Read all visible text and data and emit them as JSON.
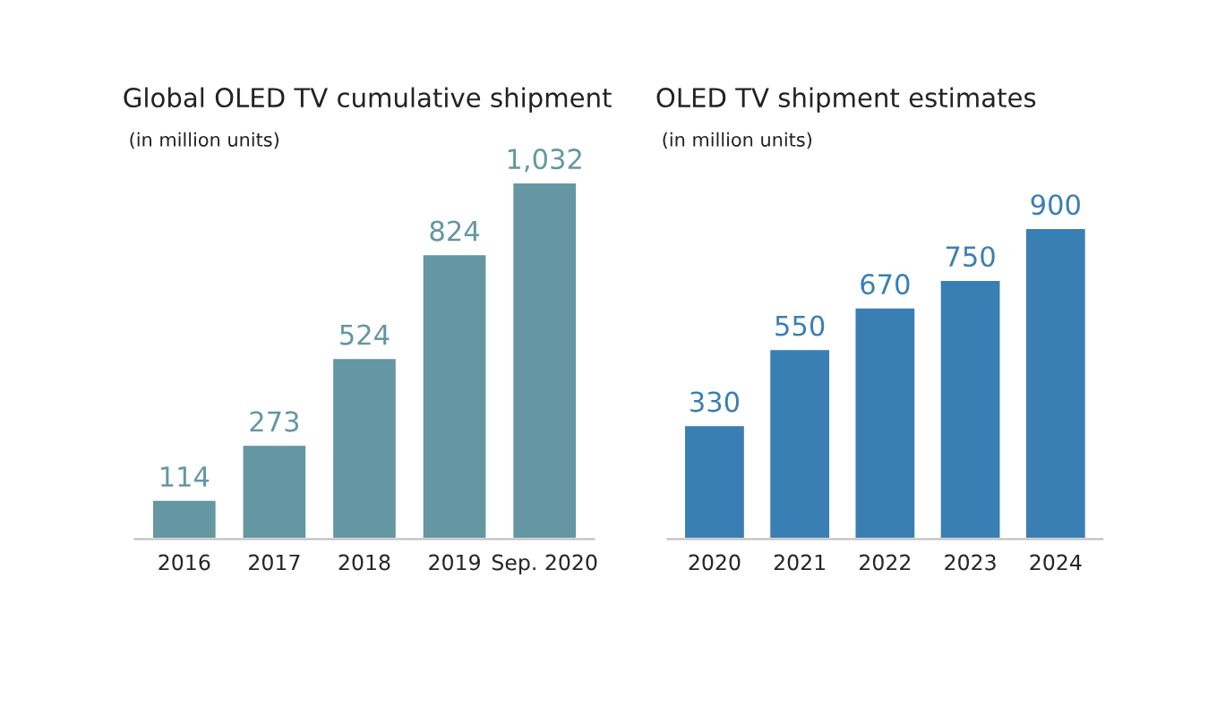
{
  "chart_data": [
    {
      "type": "bar",
      "title": "Global OLED TV cumulative shipment",
      "subtitle": "(in million units)",
      "categories": [
        "2016",
        "2017",
        "2018",
        "2019",
        "Sep. 2020"
      ],
      "values": [
        114,
        273,
        524,
        824,
        1032
      ],
      "value_labels": [
        "114",
        "273",
        "524",
        "824",
        "1,032"
      ],
      "color": "#6497a1",
      "grid": false,
      "legend": false
    },
    {
      "type": "bar",
      "title": "OLED TV shipment estimates",
      "subtitle": "(in million units)",
      "categories": [
        "2020",
        "2021",
        "2022",
        "2023",
        "2024"
      ],
      "values": [
        330,
        550,
        670,
        750,
        900
      ],
      "value_labels": [
        "330",
        "550",
        "670",
        "750",
        "900"
      ],
      "color": "#3a7fb4",
      "grid": false,
      "legend": false
    }
  ]
}
